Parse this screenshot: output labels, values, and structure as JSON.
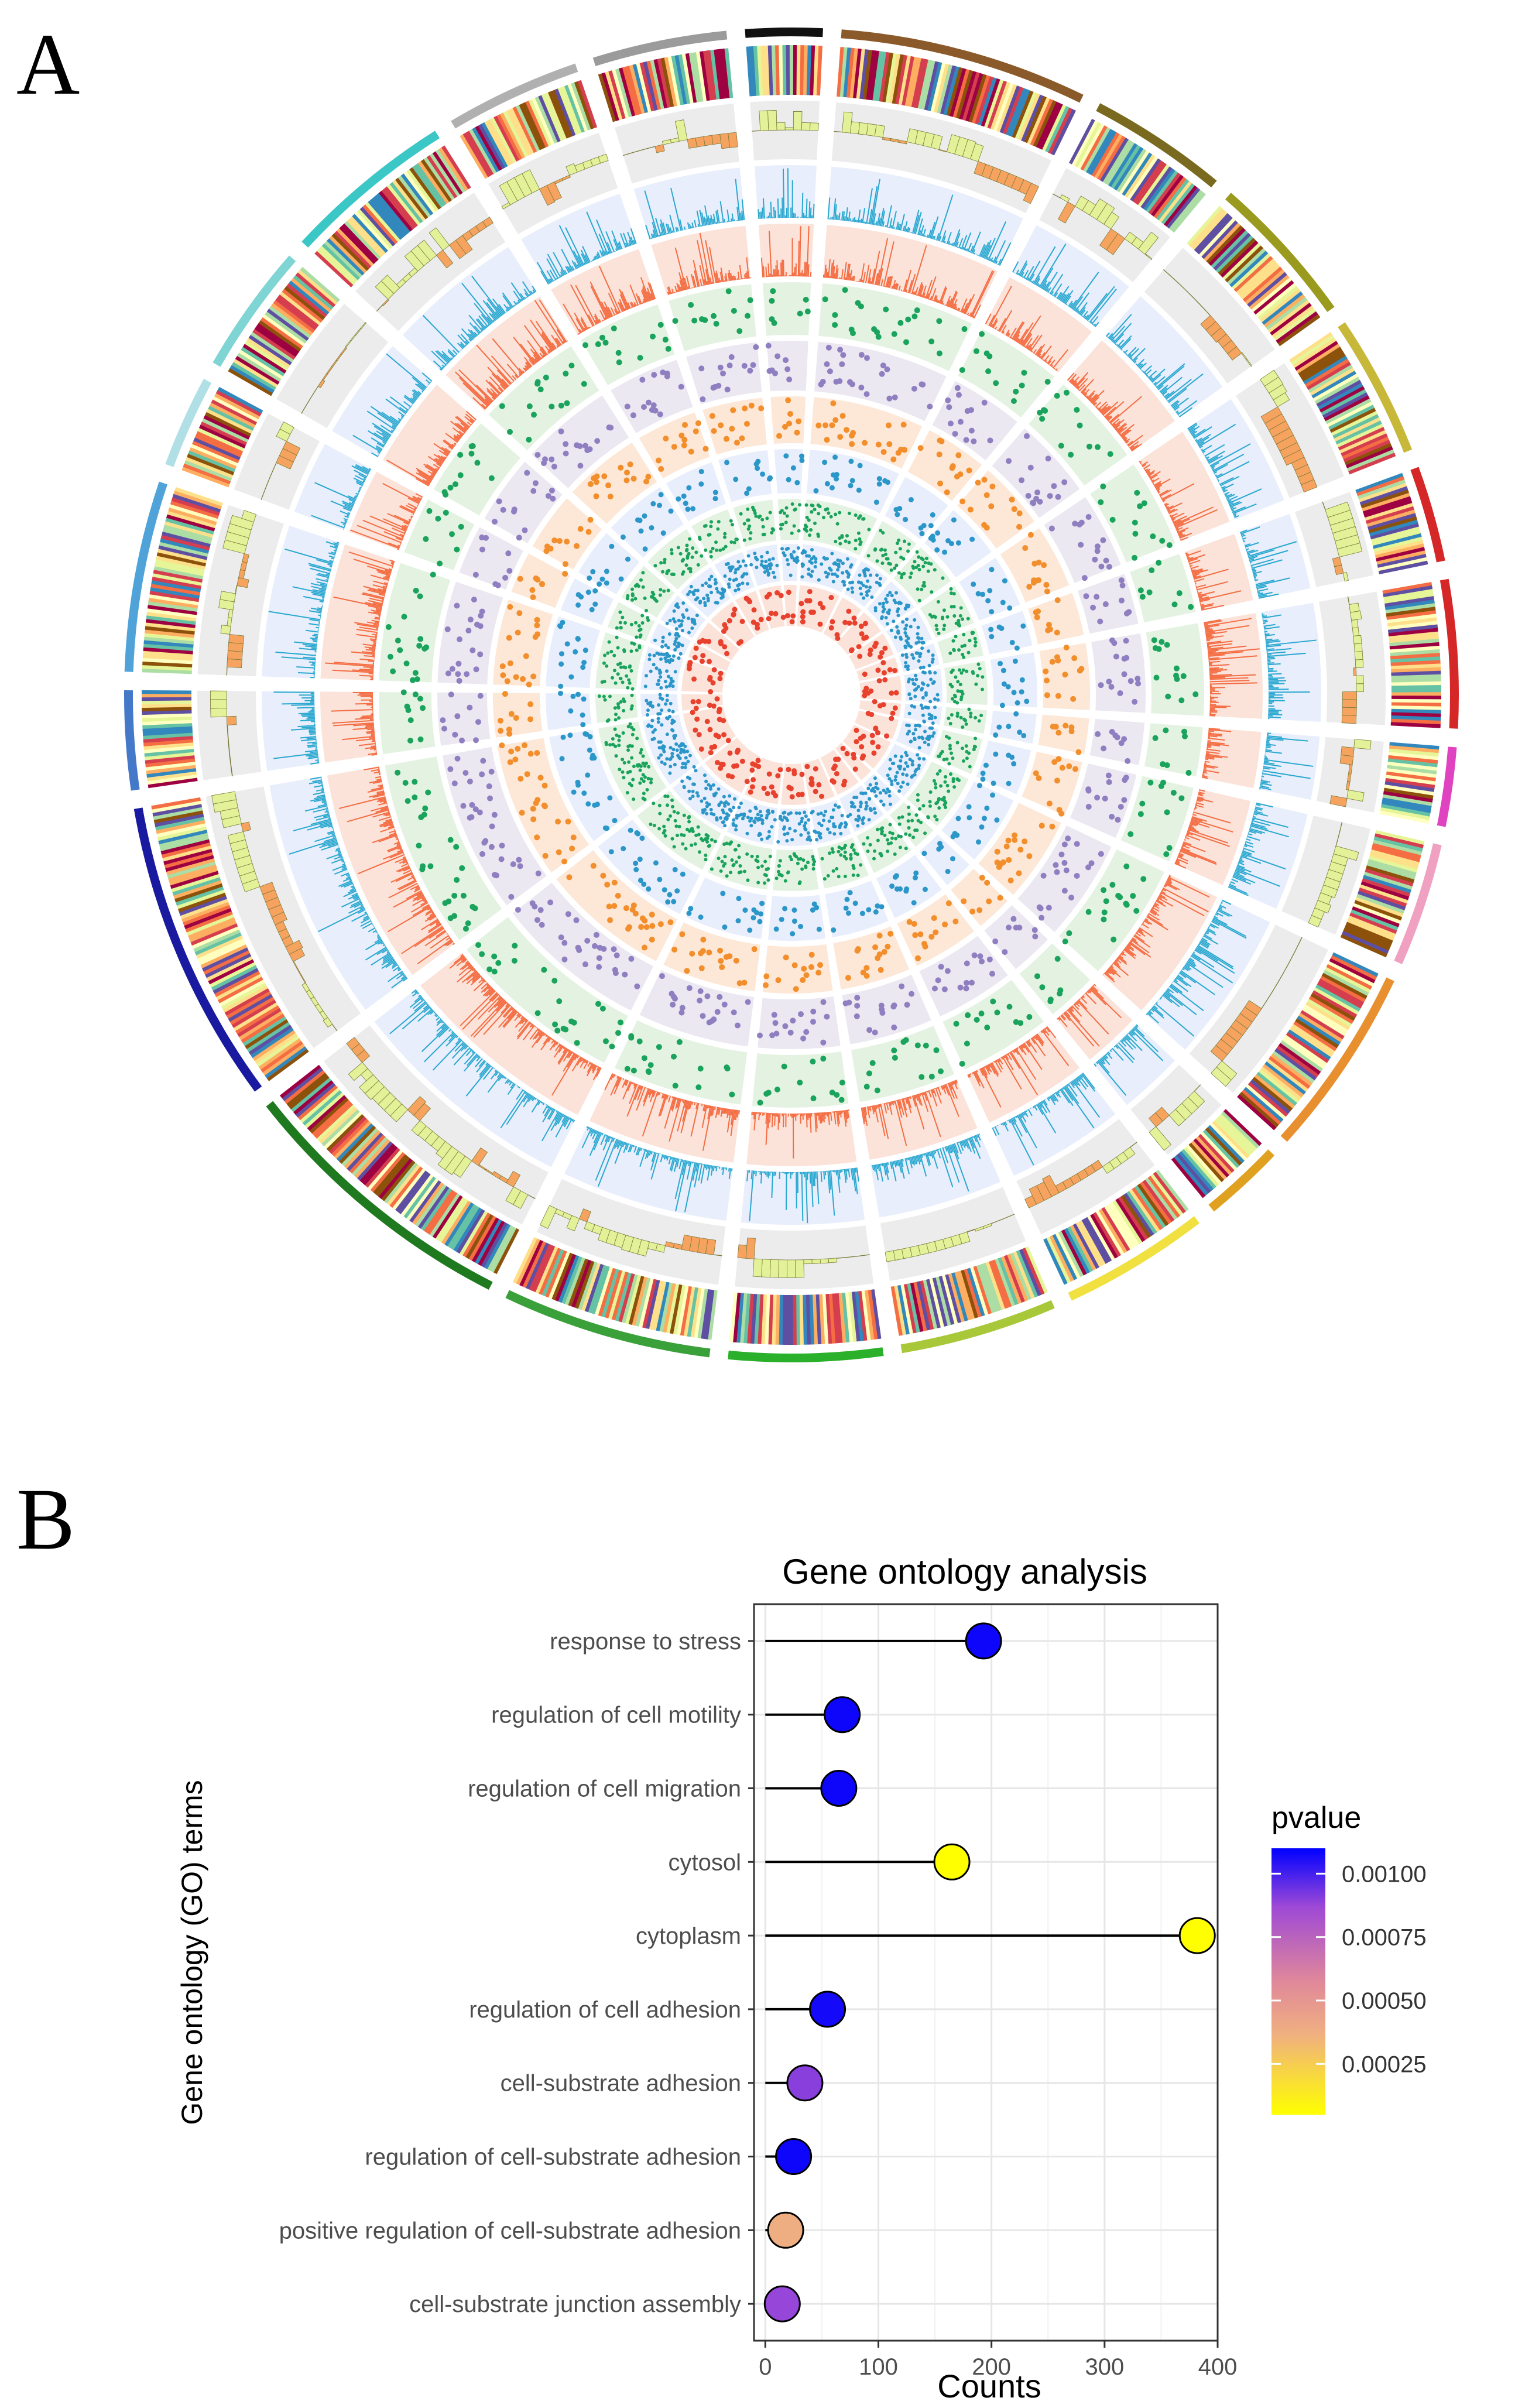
{
  "panels": {
    "a_label": "A",
    "b_label": "B"
  },
  "chart_data": [
    {
      "type": "circos",
      "panel": "A",
      "sectors": 24,
      "tracks": [
        {
          "name": "outer-ideogram",
          "kind": "band"
        },
        {
          "name": "heatmap-stripes",
          "kind": "heatmap"
        },
        {
          "name": "orange-line-track",
          "kind": "area"
        },
        {
          "name": "blue-histogram",
          "kind": "bar"
        },
        {
          "name": "red-histogram",
          "kind": "bar"
        },
        {
          "name": "green-scatter",
          "kind": "scatter"
        },
        {
          "name": "purple-scatter",
          "kind": "scatter"
        },
        {
          "name": "orange-scatter",
          "kind": "scatter"
        },
        {
          "name": "blue-scatter",
          "kind": "scatter"
        },
        {
          "name": "green-triangle-scatter",
          "kind": "scatter"
        },
        {
          "name": "blue-dense-scatter",
          "kind": "scatter"
        },
        {
          "name": "red-inner-scatter",
          "kind": "scatter"
        }
      ],
      "colors": {
        "track_bg_gray": "#ececec",
        "track_bg_blue": "#e8eefb",
        "track_bg_red": "#fbe3da",
        "track_bg_green": "#e4f3e1",
        "track_bg_purple": "#ebe8f1",
        "track_bg_orange": "#fde7d6",
        "hist_blue": "#29a8d0",
        "hist_red": "#f46d43",
        "pt_green": "#1aa35c",
        "pt_purple": "#8f7fc1",
        "pt_orange": "#f28e2b",
        "pt_blue": "#2b96c8",
        "pt_red": "#e8412e",
        "area_orange": "#f6a35f",
        "area_yellow": "#e3f199"
      },
      "sector_colors": [
        "#4fa3d9",
        "#b0e0e6",
        "#7fd4d4",
        "#3cc7c7",
        "#b0b0b0",
        "#9b9b9b",
        "#111111",
        "#8b5a2b",
        "#7a6a1f",
        "#9a9a1f",
        "#c8b83a",
        "#d62728",
        "#d62728",
        "#e043c0",
        "#f0a0c0",
        "#e89030",
        "#e0a020",
        "#f0e040",
        "#a8c83a",
        "#2ab02a",
        "#3aa03a",
        "#1f7a1f",
        "#1a1aa0",
        "#4478c8"
      ]
    },
    {
      "type": "lollipop",
      "panel": "B",
      "title": "Gene ontology analysis",
      "xlabel": "Counts",
      "ylabel": "Gene ontology (GO) terms",
      "xlim": [
        -10,
        400
      ],
      "xticks": [
        0,
        100,
        200,
        300,
        400
      ],
      "categories": [
        "response to stress",
        "regulation of cell motility",
        "regulation of cell migration",
        "cytosol",
        "cytoplasm",
        "regulation of cell adhesion",
        "cell-substrate adhesion",
        "regulation of cell-substrate adhesion",
        "positive regulation of cell-substrate adhesion",
        "cell-substrate junction assembly"
      ],
      "values": [
        193,
        68,
        65,
        165,
        382,
        55,
        35,
        25,
        18,
        15
      ],
      "pvalues": [
        0.00108,
        0.00108,
        0.00108,
        5e-05,
        5e-05,
        0.00107,
        0.0009,
        0.00108,
        0.00038,
        0.00088
      ],
      "legend": {
        "title": "pvalue",
        "ticks": [
          "0.00025",
          "0.00050",
          "0.00075",
          "0.00100"
        ],
        "tick_values": [
          0.00025,
          0.0005,
          0.00075,
          0.001
        ],
        "range": [
          5e-05,
          0.0011
        ],
        "placement": "right"
      },
      "colors": {
        "low": "#ffff00",
        "mid_low": "#f0b080",
        "mid": "#e0889a",
        "mid_high": "#9e49d6",
        "high": "#0000ff",
        "stem": "#000000",
        "grid": "#e6e6e6"
      }
    }
  ]
}
